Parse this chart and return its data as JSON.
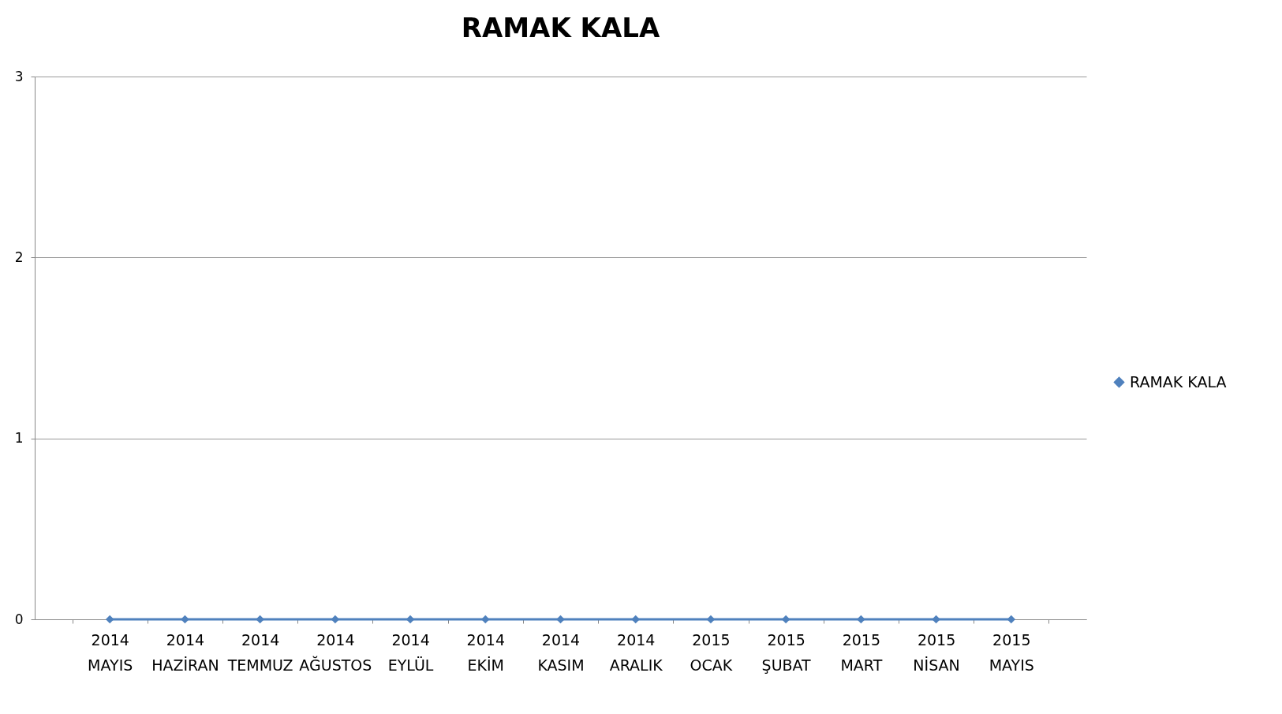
{
  "chart_data": {
    "type": "line",
    "title": "RAMAK KALA",
    "categories": [
      "2014 MAYIS",
      "2014 HAZİRAN",
      "2014 TEMMUZ",
      "2014 AĞUSTOS",
      "2014 EYLÜL",
      "2014 EKİM",
      "2014 KASIM",
      "2014 ARALIK",
      "2015 OCAK",
      "2015 ŞUBAT",
      "2015 MART",
      "2015 NİSAN",
      "2015 MAYIS"
    ],
    "series": [
      {
        "name": "RAMAK KALA",
        "color": "#4f81bd",
        "values": [
          0,
          0,
          0,
          0,
          0,
          0,
          0,
          0,
          0,
          0,
          0,
          0,
          0
        ]
      }
    ],
    "ylim": [
      0,
      3
    ],
    "yticks": [
      0,
      1,
      2,
      3
    ],
    "grid": "y",
    "legend": "right",
    "marker": "diamond",
    "line_style": "solid"
  }
}
